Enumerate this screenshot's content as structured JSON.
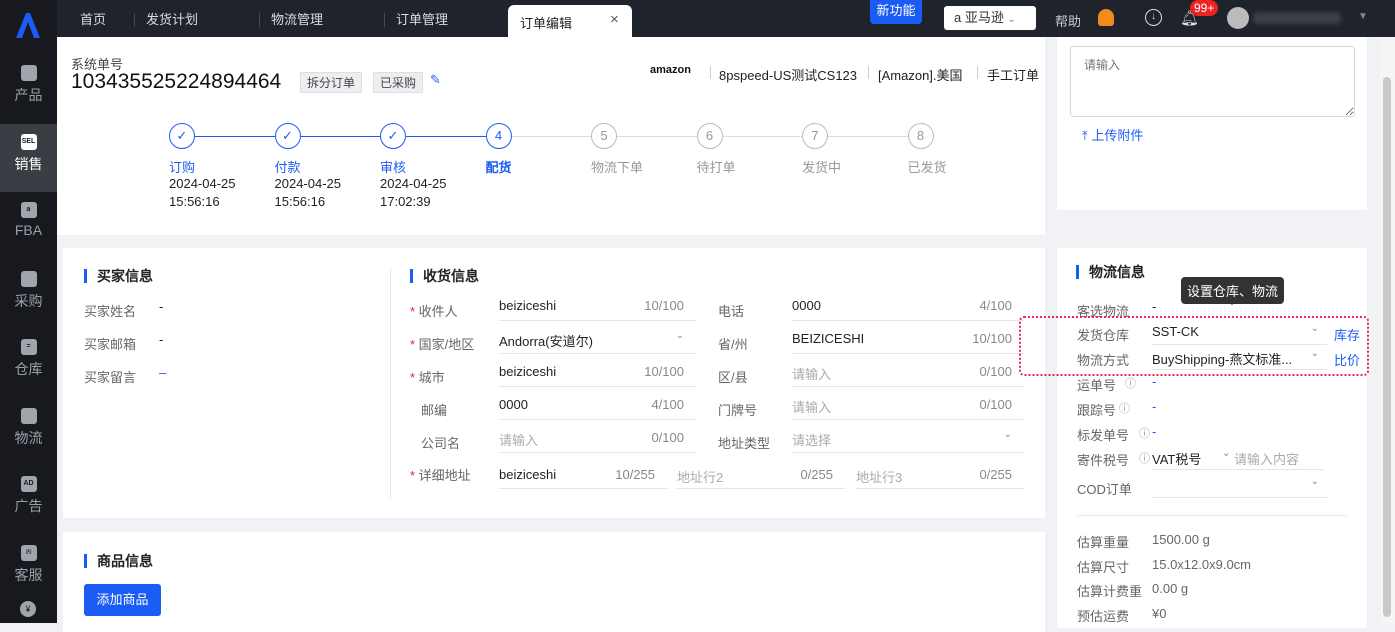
{
  "topbar": {
    "tabs": [
      "首页",
      "发货计划",
      "物流管理",
      "订单管理"
    ],
    "active_tab": "订单编辑",
    "new_feature": "新功能",
    "platform": "亚马逊",
    "help": "帮助",
    "notifications": "99+"
  },
  "sidebar": {
    "items": [
      {
        "label": "产品",
        "icon": "bag-icon"
      },
      {
        "label": "销售",
        "icon": "sel-icon",
        "active": true
      },
      {
        "label": "FBA",
        "icon": "amazon-box-icon"
      },
      {
        "label": "采购",
        "icon": "cart-icon"
      },
      {
        "label": "仓库",
        "icon": "warehouse-icon"
      },
      {
        "label": "物流",
        "icon": "truck-icon"
      },
      {
        "label": "广告",
        "icon": "ad-icon"
      },
      {
        "label": "客服",
        "icon": "mail-icon"
      }
    ]
  },
  "order": {
    "label": "系统单号",
    "number": "103435525224894464",
    "tags": [
      "拆分订单",
      "已采购"
    ],
    "platform_logo": "amazon",
    "store": "8pspeed-US测试CS123",
    "site": "[Amazon].美国",
    "type": "手工订单"
  },
  "steps": [
    {
      "n": "1",
      "label": "订购",
      "date": "2024-04-25",
      "time": "15:56:16",
      "state": "done"
    },
    {
      "n": "2",
      "label": "付款",
      "date": "2024-04-25",
      "time": "15:56:16",
      "state": "done"
    },
    {
      "n": "3",
      "label": "审核",
      "date": "2024-04-25",
      "time": "17:02:39",
      "state": "done"
    },
    {
      "n": "4",
      "label": "配货",
      "state": "current"
    },
    {
      "n": "5",
      "label": "物流下单",
      "state": "todo"
    },
    {
      "n": "6",
      "label": "待打单",
      "state": "todo"
    },
    {
      "n": "7",
      "label": "发货中",
      "state": "todo"
    },
    {
      "n": "8",
      "label": "已发货",
      "state": "todo"
    }
  ],
  "remark": {
    "placeholder": "请输入",
    "upload": "上传附件"
  },
  "buyer": {
    "title": "买家信息",
    "rows": [
      {
        "label": "买家姓名",
        "value": "-"
      },
      {
        "label": "买家邮箱",
        "value": "-"
      },
      {
        "label": "买家留言",
        "value": "–"
      }
    ]
  },
  "shipping": {
    "title": "收货信息",
    "left": [
      {
        "label": "收件人",
        "req": true,
        "value": "beiziceshi",
        "count": "10/100"
      },
      {
        "label": "国家/地区",
        "req": true,
        "value": "Andorra(安道尔)",
        "select": true
      },
      {
        "label": "城市",
        "req": true,
        "value": "beiziceshi",
        "count": "10/100"
      },
      {
        "label": "邮编",
        "value": "0000",
        "count": "4/100"
      },
      {
        "label": "公司名",
        "placeholder": "请输入",
        "count": "0/100"
      }
    ],
    "right": [
      {
        "label": "电话",
        "value": "0000",
        "count": "4/100"
      },
      {
        "label": "省/州",
        "value": "BEIZICESHI",
        "count": "10/100"
      },
      {
        "label": "区/县",
        "placeholder": "请输入",
        "count": "0/100"
      },
      {
        "label": "门牌号",
        "placeholder": "请输入",
        "count": "0/100"
      },
      {
        "label": "地址类型",
        "placeholder": "请选择",
        "select": true
      }
    ],
    "address": {
      "label": "详细地址",
      "value": "beiziceshi",
      "count": "10/255",
      "line2": "地址行2",
      "count2": "0/255",
      "line3": "地址行3",
      "count3": "0/255"
    }
  },
  "products": {
    "title": "商品信息",
    "add": "添加商品"
  },
  "logistics": {
    "title": "物流信息",
    "tooltip": "设置仓库、物流",
    "preferred_label": "客选物流",
    "preferred": "-",
    "warehouse_label": "发货仓库",
    "warehouse": "SST-CK",
    "stock_link": "库存",
    "method_label": "物流方式",
    "method": "BuyShipping-燕文标准...",
    "compare_link": "比价",
    "waybill_label": "运单号",
    "waybill": "-",
    "tracking_label": "跟踪号",
    "tracking": "-",
    "label_no_label": "标发单号",
    "label_no": "-",
    "tax_label": "寄件税号",
    "tax_type": "VAT税号",
    "tax_placeholder": "请输入内容",
    "cod_label": "COD订单",
    "stats": [
      {
        "label": "估算重量",
        "value": "1500.00 g"
      },
      {
        "label": "估算尺寸",
        "value": "15.0x12.0x9.0cm"
      },
      {
        "label": "估算计费重",
        "value": "0.00 g"
      },
      {
        "label": "预估运费",
        "value": "¥0"
      }
    ]
  }
}
